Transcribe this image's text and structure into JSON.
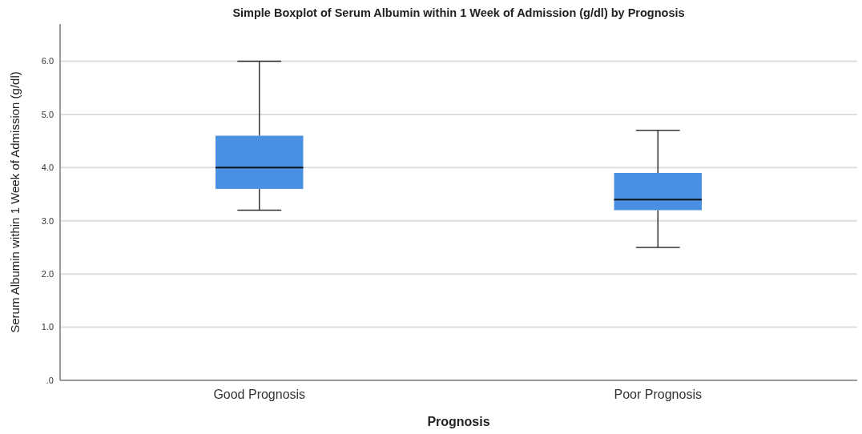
{
  "chart_data": {
    "type": "box",
    "title": "Simple Boxplot of Serum Albumin within 1 Week of Admission (g/dl) by Prognosis",
    "xlabel": "Prognosis",
    "ylabel": "Serum Albumin within 1 Week of Admission (g/dl)",
    "categories": [
      "Good Prognosis",
      "Poor Prognosis"
    ],
    "boxes": [
      {
        "low": 3.2,
        "q1": 3.6,
        "median": 4.0,
        "q3": 4.6,
        "high": 6.0
      },
      {
        "low": 2.5,
        "q1": 3.2,
        "median": 3.4,
        "q3": 3.9,
        "high": 4.7
      }
    ],
    "color": "#4a90e2",
    "ylim": [
      0,
      6.7
    ],
    "yticks": [
      {
        "value": 0,
        "label": ".0"
      },
      {
        "value": 1,
        "label": "1.0"
      },
      {
        "value": 2,
        "label": "2.0"
      },
      {
        "value": 3,
        "label": "3.0"
      },
      {
        "value": 4,
        "label": "4.0"
      },
      {
        "value": 5,
        "label": "5.0"
      },
      {
        "value": 6,
        "label": "6.0"
      }
    ],
    "grid": "y"
  }
}
